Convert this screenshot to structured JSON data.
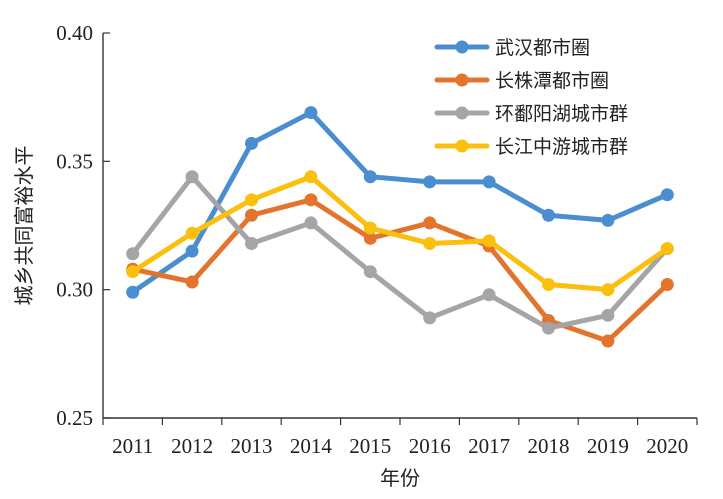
{
  "chart_data": {
    "type": "line",
    "title": "",
    "xlabel": "年份",
    "ylabel": "城乡共同富裕水平",
    "categories": [
      "2011",
      "2012",
      "2013",
      "2014",
      "2015",
      "2016",
      "2017",
      "2018",
      "2019",
      "2020"
    ],
    "ylim": [
      0.25,
      0.4
    ],
    "yticks": [
      "0.25",
      "0.30",
      "0.35",
      "0.40"
    ],
    "grid": false,
    "legend_position": "top-right",
    "series": [
      {
        "name": "武汉都市圈",
        "color": "#4a8ed0",
        "values": [
          0.299,
          0.315,
          0.357,
          0.369,
          0.344,
          0.342,
          0.342,
          0.329,
          0.327,
          0.337
        ]
      },
      {
        "name": "长株潭都市圈",
        "color": "#e2742e",
        "values": [
          0.308,
          0.303,
          0.329,
          0.335,
          0.32,
          0.326,
          0.317,
          0.288,
          0.28,
          0.302
        ]
      },
      {
        "name": "环鄱阳湖城市群",
        "color": "#a5a5a5",
        "values": [
          0.314,
          0.344,
          0.318,
          0.326,
          0.307,
          0.289,
          0.298,
          0.285,
          0.29,
          0.316
        ]
      },
      {
        "name": "长江中游城市群",
        "color": "#fbbf0e",
        "values": [
          0.307,
          0.322,
          0.335,
          0.344,
          0.324,
          0.318,
          0.319,
          0.302,
          0.3,
          0.316
        ]
      }
    ]
  }
}
